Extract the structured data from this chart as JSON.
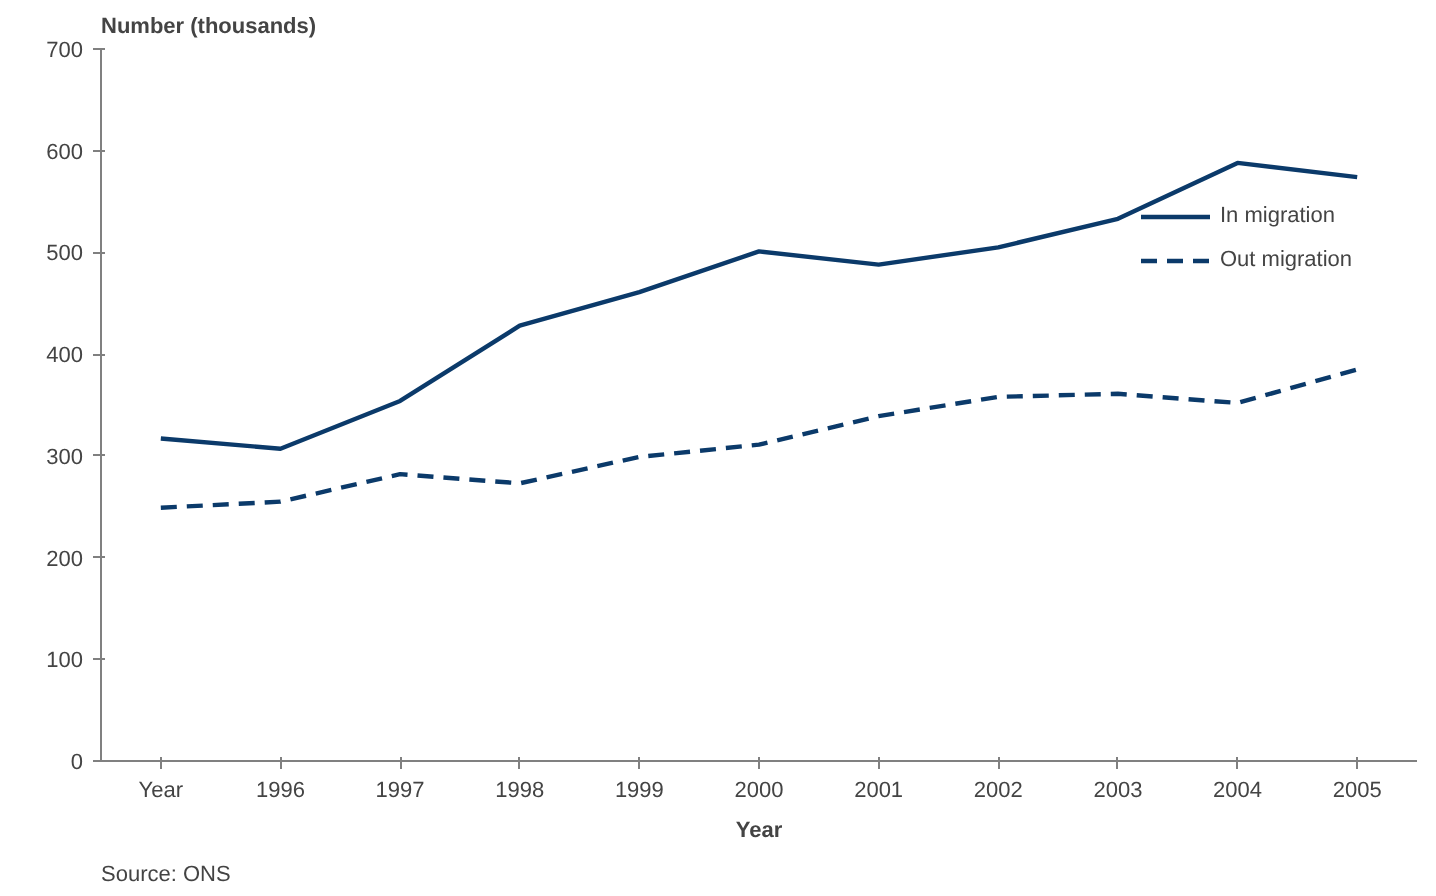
{
  "chart_data": {
    "type": "line",
    "ylabel": "Number (thousands)",
    "xlabel": "Year",
    "categories": [
      "Year",
      "1996",
      "1997",
      "1998",
      "1999",
      "2000",
      "2001",
      "2002",
      "2003",
      "2004",
      "2005"
    ],
    "series": [
      {
        "name": "In migration",
        "color": "#0b3a6a",
        "line_style": "solid",
        "values": [
          317,
          307,
          354,
          428,
          461,
          501,
          488,
          505,
          533,
          588,
          574
        ]
      },
      {
        "name": "Out migration",
        "color": "#0b3a6a",
        "line_style": "dashed",
        "values": [
          249,
          255,
          282,
          273,
          299,
          311,
          339,
          358,
          361,
          352,
          385
        ]
      }
    ],
    "ylim": [
      0,
      700
    ],
    "yticks": [
      0,
      100,
      200,
      300,
      400,
      500,
      600,
      700
    ],
    "grid": false,
    "legend": "right",
    "marker": "none",
    "annotations": [
      "Source: ONS"
    ]
  }
}
